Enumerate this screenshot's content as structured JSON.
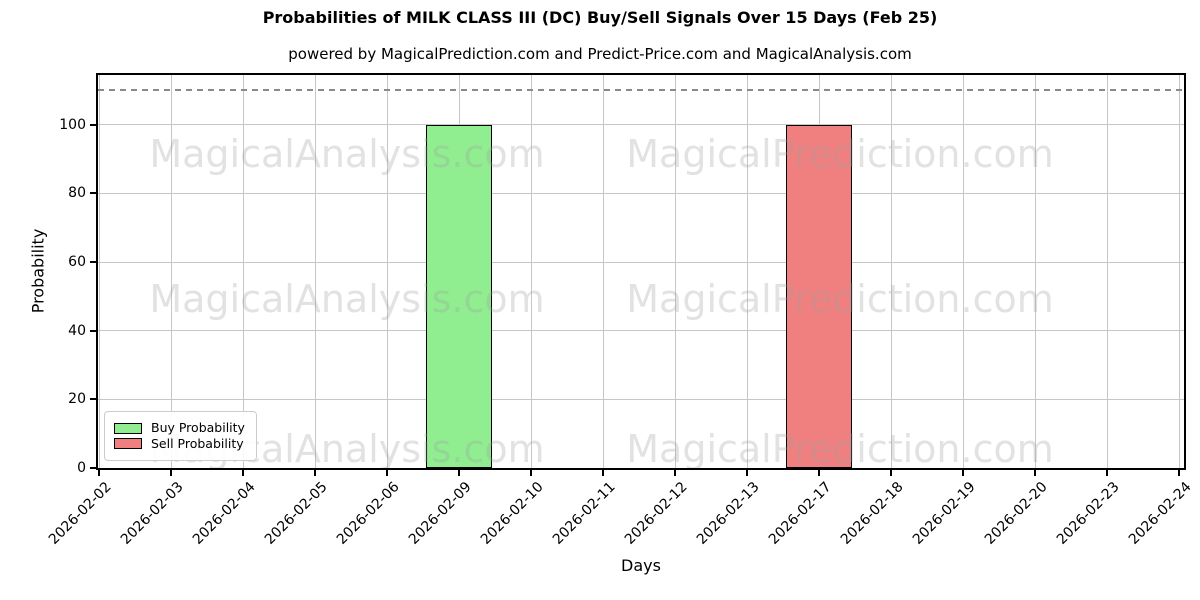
{
  "chart_data": {
    "type": "bar",
    "title": "Probabilities of MILK CLASS III (DC) Buy/Sell Signals Over 15 Days (Feb 25)",
    "subtitle": "powered by MagicalPrediction.com and Predict-Price.com and MagicalAnalysis.com",
    "xlabel": "Days",
    "ylabel": "Probability",
    "categories": [
      "2026-02-02",
      "2026-02-03",
      "2026-02-04",
      "2026-02-05",
      "2026-02-06",
      "2026-02-09",
      "2026-02-10",
      "2026-02-11",
      "2026-02-12",
      "2026-02-13",
      "2026-02-17",
      "2026-02-18",
      "2026-02-19",
      "2026-02-20",
      "2026-02-23",
      "2026-02-24"
    ],
    "series": [
      {
        "name": "Buy Probability",
        "color": "#90EE90",
        "edge_color": "#000000",
        "values": [
          0,
          0,
          0,
          0,
          0,
          100,
          0,
          0,
          0,
          0,
          0,
          0,
          0,
          0,
          0,
          0
        ]
      },
      {
        "name": "Sell Probability",
        "color": "#F08080",
        "edge_color": "#000000",
        "values": [
          0,
          0,
          0,
          0,
          0,
          0,
          0,
          0,
          0,
          0,
          100,
          0,
          0,
          0,
          0,
          0
        ]
      }
    ],
    "ylim": [
      0,
      114.5
    ],
    "yticks": [
      0,
      20,
      40,
      60,
      80,
      100
    ],
    "dashed_line_y": 110,
    "grid": true,
    "legend_position": "lower left",
    "watermark_texts": [
      "MagicalAnalysis.com",
      "MagicalPrediction.com"
    ],
    "grid_color": "#c6c6c6",
    "dashed_line_color": "#8a8a8a"
  }
}
